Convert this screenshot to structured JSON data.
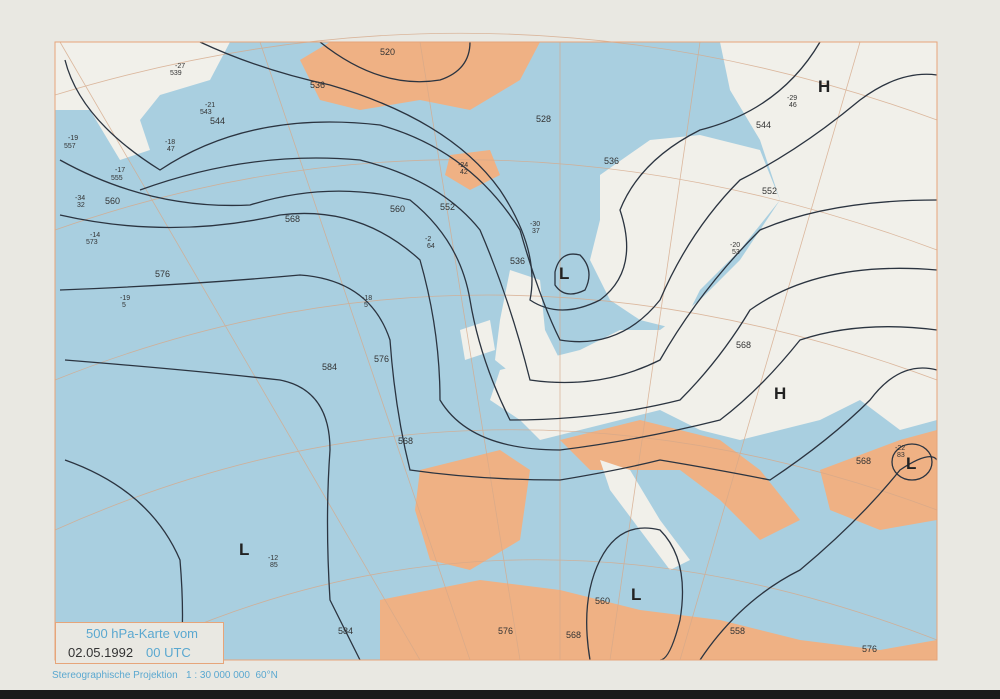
{
  "title": {
    "line1": "500 hPa-Karte vom",
    "date": "02.05.1992",
    "time": "00 UTC"
  },
  "footer": {
    "projection": "Stereographische Projektion",
    "scale": "1 : 30 000 000",
    "latitude": "60°N"
  },
  "colors": {
    "sea": "#a9cfe0",
    "land": "#f1f0ea",
    "high_terrain": "#efb184",
    "grid": "#d6a98a",
    "contour": "#2b3440",
    "title_text": "#5aa8d0"
  },
  "contour_labels": [
    {
      "text": "520"
    },
    {
      "text": "536"
    },
    {
      "text": "544"
    },
    {
      "text": "560"
    },
    {
      "text": "552"
    },
    {
      "text": "560"
    },
    {
      "text": "568"
    },
    {
      "text": "576"
    },
    {
      "text": "584"
    },
    {
      "text": "576"
    },
    {
      "text": "568"
    },
    {
      "text": "536"
    },
    {
      "text": "528"
    },
    {
      "text": "536"
    },
    {
      "text": "544"
    },
    {
      "text": "552"
    },
    {
      "text": "568"
    },
    {
      "text": "568"
    },
    {
      "text": "560"
    },
    {
      "text": "568"
    },
    {
      "text": "576"
    },
    {
      "text": "584"
    },
    {
      "text": "558"
    },
    {
      "text": "576"
    }
  ],
  "pressure_centers": [
    {
      "type": "H"
    },
    {
      "type": "H"
    },
    {
      "type": "L"
    },
    {
      "type": "L"
    },
    {
      "type": "L"
    },
    {
      "type": "L"
    }
  ],
  "stations": [
    {
      "t": "-19",
      "h": "557"
    },
    {
      "t": "-17",
      "h": "555"
    },
    {
      "t": "-14",
      "h": "573"
    },
    {
      "t": "-21",
      "h": "543"
    },
    {
      "t": "-27",
      "h": "539"
    },
    {
      "t": "-24",
      "h": "42"
    },
    {
      "t": "-18",
      "h": "47"
    },
    {
      "t": "-34",
      "h": "32"
    },
    {
      "t": "-2",
      "h": "64"
    },
    {
      "t": "-18",
      "h": "5"
    },
    {
      "t": "-19",
      "h": "5"
    },
    {
      "t": "-30",
      "h": "37"
    },
    {
      "t": "-29",
      "h": "46"
    },
    {
      "t": "-20",
      "h": "53"
    },
    {
      "t": "-22",
      "h": "83"
    },
    {
      "t": "-12",
      "h": "85"
    }
  ]
}
